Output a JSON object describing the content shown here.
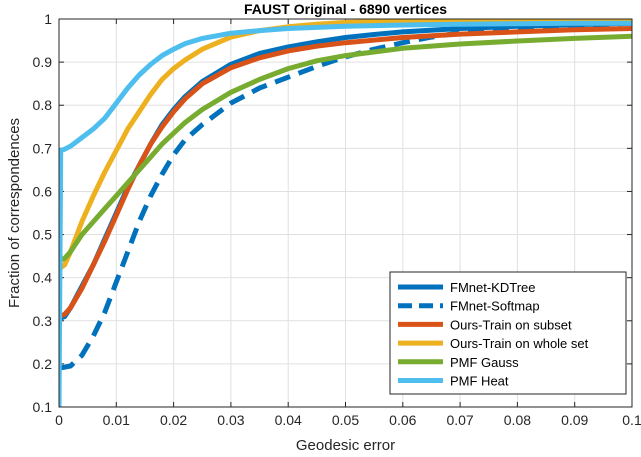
{
  "chart_data": {
    "type": "line",
    "title": "FAUST Original - 6890 vertices",
    "xlabel": "Geodesic error",
    "ylabel": "Fraction of correspondences",
    "xlim": [
      0,
      0.1
    ],
    "ylim": [
      0.1,
      1
    ],
    "x_ticks": [
      "0",
      "0.01",
      "0.02",
      "0.03",
      "0.04",
      "0.05",
      "0.06",
      "0.07",
      "0.08",
      "0.09",
      "0.1"
    ],
    "y_ticks": [
      "0.1",
      "0.2",
      "0.3",
      "0.4",
      "0.5",
      "0.6",
      "0.7",
      "0.8",
      "0.9",
      "1"
    ],
    "grid": true,
    "legend_position": "bottom-right",
    "series": [
      {
        "name": "FMnet-KDTree",
        "color": "#0072BD",
        "dash": "solid",
        "x": [
          0,
          0.001,
          0.002,
          0.004,
          0.006,
          0.008,
          0.01,
          0.012,
          0.014,
          0.016,
          0.018,
          0.02,
          0.022,
          0.025,
          0.03,
          0.035,
          0.04,
          0.045,
          0.05,
          0.055,
          0.06,
          0.07,
          0.08,
          0.09,
          0.1
        ],
        "y": [
          0.305,
          0.31,
          0.33,
          0.38,
          0.43,
          0.49,
          0.55,
          0.61,
          0.66,
          0.71,
          0.755,
          0.79,
          0.82,
          0.855,
          0.895,
          0.92,
          0.935,
          0.947,
          0.957,
          0.964,
          0.97,
          0.978,
          0.983,
          0.987,
          0.99
        ]
      },
      {
        "name": "FMnet-Softmap",
        "color": "#0072BD",
        "dash": "dashed",
        "x": [
          0,
          0.002,
          0.004,
          0.006,
          0.008,
          0.01,
          0.012,
          0.014,
          0.016,
          0.018,
          0.02,
          0.022,
          0.025,
          0.03,
          0.035,
          0.04,
          0.045,
          0.05,
          0.055,
          0.06,
          0.065,
          0.07,
          0.08,
          0.09,
          0.1
        ],
        "y": [
          0.19,
          0.195,
          0.22,
          0.265,
          0.32,
          0.39,
          0.46,
          0.53,
          0.59,
          0.64,
          0.685,
          0.72,
          0.755,
          0.805,
          0.84,
          0.865,
          0.89,
          0.912,
          0.93,
          0.945,
          0.958,
          0.968,
          0.978,
          0.985,
          0.99
        ]
      },
      {
        "name": "Ours-Train on subset",
        "color": "#D95319",
        "dash": "solid",
        "x": [
          0,
          0.001,
          0.002,
          0.004,
          0.006,
          0.008,
          0.01,
          0.012,
          0.014,
          0.016,
          0.018,
          0.02,
          0.022,
          0.025,
          0.03,
          0.035,
          0.04,
          0.045,
          0.05,
          0.06,
          0.07,
          0.08,
          0.09,
          0.1
        ],
        "y": [
          0.31,
          0.315,
          0.33,
          0.375,
          0.43,
          0.485,
          0.545,
          0.605,
          0.66,
          0.71,
          0.75,
          0.785,
          0.815,
          0.85,
          0.887,
          0.91,
          0.926,
          0.937,
          0.945,
          0.957,
          0.965,
          0.97,
          0.975,
          0.978
        ]
      },
      {
        "name": "Ours-Train on whole set",
        "color": "#EDB120",
        "dash": "solid",
        "x": [
          0,
          0.001,
          0.002,
          0.004,
          0.006,
          0.008,
          0.01,
          0.012,
          0.014,
          0.016,
          0.018,
          0.02,
          0.022,
          0.025,
          0.03,
          0.035,
          0.04,
          0.045,
          0.05,
          0.06,
          0.07,
          0.08,
          0.09,
          0.1
        ],
        "y": [
          0.42,
          0.43,
          0.46,
          0.53,
          0.59,
          0.645,
          0.695,
          0.745,
          0.785,
          0.825,
          0.86,
          0.885,
          0.905,
          0.93,
          0.958,
          0.973,
          0.982,
          0.988,
          0.992,
          0.995,
          0.997,
          0.998,
          0.999,
          1.0
        ]
      },
      {
        "name": "PMF Gauss",
        "color": "#77AC30",
        "dash": "solid",
        "x": [
          0,
          0.001,
          0.002,
          0.004,
          0.006,
          0.008,
          0.01,
          0.012,
          0.014,
          0.016,
          0.018,
          0.02,
          0.022,
          0.025,
          0.03,
          0.035,
          0.04,
          0.045,
          0.05,
          0.06,
          0.07,
          0.08,
          0.09,
          0.1
        ],
        "y": [
          0.44,
          0.445,
          0.46,
          0.5,
          0.53,
          0.56,
          0.59,
          0.62,
          0.65,
          0.68,
          0.71,
          0.735,
          0.76,
          0.79,
          0.83,
          0.86,
          0.885,
          0.903,
          0.915,
          0.932,
          0.942,
          0.949,
          0.955,
          0.96
        ]
      },
      {
        "name": "PMF Heat",
        "color": "#4DBEEE",
        "dash": "solid",
        "x": [
          0,
          0.0003,
          0.001,
          0.002,
          0.004,
          0.006,
          0.008,
          0.01,
          0.012,
          0.014,
          0.016,
          0.018,
          0.02,
          0.022,
          0.025,
          0.03,
          0.035,
          0.04,
          0.05,
          0.06,
          0.07,
          0.08,
          0.09,
          0.1
        ],
        "y": [
          0.1,
          0.695,
          0.698,
          0.705,
          0.725,
          0.745,
          0.77,
          0.805,
          0.84,
          0.87,
          0.895,
          0.915,
          0.93,
          0.943,
          0.955,
          0.967,
          0.973,
          0.978,
          0.983,
          0.986,
          0.988,
          0.989,
          0.99,
          0.99
        ]
      }
    ]
  }
}
